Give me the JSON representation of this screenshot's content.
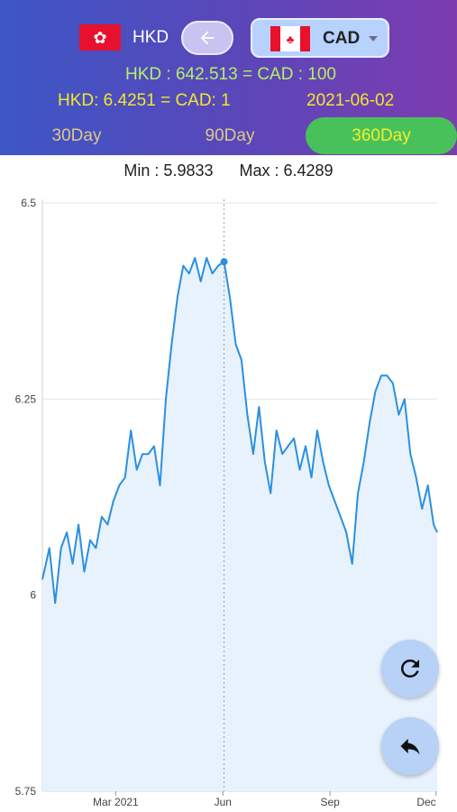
{
  "header": {
    "base_currency": {
      "code": "HKD",
      "flag_icon": "hong-kong-flag-icon"
    },
    "swap_icon": "arrow-left-icon",
    "target_currency": {
      "code": "CAD",
      "flag_icon": "canada-flag-icon"
    },
    "rate_line_1": "HKD : 642.513  =  CAD : 100",
    "rate_line_2": "HKD: 6.4251  =  CAD: 1",
    "rate_date": "2021-06-02",
    "tabs": [
      {
        "label": "30Day",
        "active": false
      },
      {
        "label": "90Day",
        "active": false
      },
      {
        "label": "360Day",
        "active": true
      }
    ],
    "colors": {
      "gradient_start": "#3d56c6",
      "gradient_end": "#7d3cb0",
      "active_tab": "#49c15a",
      "rate_line_1": "#b6ef69",
      "rate_line_2": "#f2e72e"
    }
  },
  "stats": {
    "min_label": "Min : 5.9833",
    "max_label": "Max : 6.4289"
  },
  "chart_data": {
    "type": "area",
    "title": "",
    "xlabel": "",
    "ylabel": "",
    "ylim": [
      5.75,
      6.5
    ],
    "yticks": [
      "5.75",
      "6",
      "6.25",
      "6.5"
    ],
    "xticks": [
      "Mar 2021",
      "Jun",
      "Sep",
      "Dec"
    ],
    "xtick_dates": [
      "2021-03-01",
      "2021-06-01",
      "2021-09-01",
      "2021-12-01"
    ],
    "x_start": "2020-12-28",
    "x_end": "2021-12-02",
    "highlight": {
      "date": "2021-06-02",
      "value": 6.4251
    },
    "grid": true,
    "color": "#2b8fe0",
    "series": [
      {
        "dates": [
          "2020-12-28",
          "2021-01-03",
          "2021-01-08",
          "2021-01-13",
          "2021-01-18",
          "2021-01-23",
          "2021-01-28",
          "2021-02-02",
          "2021-02-07",
          "2021-02-12",
          "2021-02-17",
          "2021-02-22",
          "2021-02-27",
          "2021-03-04",
          "2021-03-09",
          "2021-03-14",
          "2021-03-19",
          "2021-03-24",
          "2021-03-29",
          "2021-04-03",
          "2021-04-08",
          "2021-04-13",
          "2021-04-18",
          "2021-04-23",
          "2021-04-28",
          "2021-05-03",
          "2021-05-08",
          "2021-05-13",
          "2021-05-18",
          "2021-05-23",
          "2021-05-28",
          "2021-06-02",
          "2021-06-07",
          "2021-06-12",
          "2021-06-17",
          "2021-06-22",
          "2021-06-27",
          "2021-07-02",
          "2021-07-07",
          "2021-07-12",
          "2021-07-17",
          "2021-07-22",
          "2021-07-27",
          "2021-08-01",
          "2021-08-06",
          "2021-08-11",
          "2021-08-16",
          "2021-08-21",
          "2021-08-26",
          "2021-08-31",
          "2021-09-05",
          "2021-09-10",
          "2021-09-15",
          "2021-09-20",
          "2021-09-25",
          "2021-09-30",
          "2021-10-05",
          "2021-10-10",
          "2021-10-15",
          "2021-10-20",
          "2021-10-25",
          "2021-10-30",
          "2021-11-04",
          "2021-11-09",
          "2021-11-14",
          "2021-11-19",
          "2021-11-24",
          "2021-11-29",
          "2021-12-02"
        ],
        "values": [
          6.02,
          6.06,
          5.99,
          6.06,
          6.08,
          6.04,
          6.09,
          6.03,
          6.07,
          6.06,
          6.1,
          6.09,
          6.12,
          6.14,
          6.15,
          6.21,
          6.16,
          6.18,
          6.18,
          6.19,
          6.14,
          6.25,
          6.32,
          6.38,
          6.42,
          6.41,
          6.43,
          6.4,
          6.43,
          6.41,
          6.42,
          6.4251,
          6.38,
          6.32,
          6.3,
          6.23,
          6.18,
          6.24,
          6.17,
          6.13,
          6.21,
          6.18,
          6.19,
          6.2,
          6.16,
          6.19,
          6.15,
          6.21,
          6.17,
          6.14,
          6.12,
          6.1,
          6.08,
          6.04,
          6.13,
          6.17,
          6.22,
          6.26,
          6.28,
          6.28,
          6.27,
          6.23,
          6.25,
          6.18,
          6.15,
          6.11,
          6.14,
          6.09,
          6.08
        ]
      }
    ]
  },
  "fabs": {
    "refresh_icon": "refresh-icon",
    "back_icon": "reply-arrow-icon"
  }
}
